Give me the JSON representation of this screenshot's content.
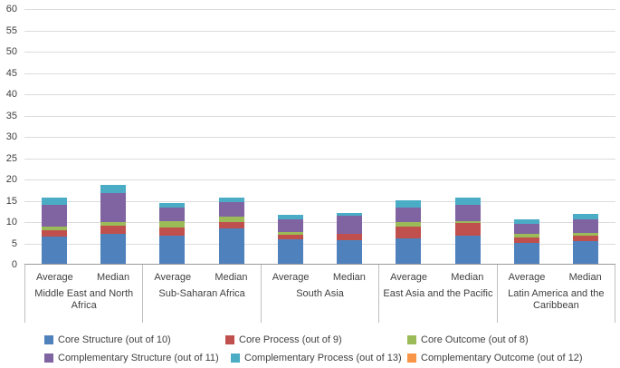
{
  "chart_data": {
    "type": "bar",
    "stacked": true,
    "title": "",
    "xlabel": "",
    "ylabel": "",
    "ylim": [
      0,
      60
    ],
    "ytick_step": 5,
    "yticks": [
      0,
      5,
      10,
      15,
      20,
      25,
      30,
      35,
      40,
      45,
      50,
      55,
      60
    ],
    "grid": true,
    "legend_position": "bottom",
    "group_labels": [
      "Middle East and North Africa",
      "Sub-Saharan Africa",
      "South Asia",
      "East Asia and the Pacific",
      "Latin America and the Caribbean"
    ],
    "categories": [
      "Average",
      "Median",
      "Average",
      "Median",
      "Average",
      "Median",
      "Average",
      "Median",
      "Average",
      "Median"
    ],
    "series": [
      {
        "name": "Core Structure (out of 10)",
        "color": "#4F81BD",
        "values": [
          6.3,
          7.0,
          6.7,
          8.3,
          5.8,
          5.5,
          6.0,
          6.7,
          4.9,
          5.3
        ]
      },
      {
        "name": "Core Process (out of 9)",
        "color": "#C0504D",
        "values": [
          1.6,
          1.9,
          1.9,
          1.4,
          1.0,
          1.5,
          2.8,
          2.8,
          1.3,
          1.2
        ]
      },
      {
        "name": "Core Outcome (out of 8)",
        "color": "#9BBB59",
        "values": [
          0.9,
          0.8,
          1.4,
          1.3,
          0.6,
          0.0,
          1.1,
          0.6,
          0.9,
          0.8
        ]
      },
      {
        "name": "Complementary Structure (out of 11)",
        "color": "#8064A2",
        "values": [
          5.1,
          6.8,
          3.2,
          3.5,
          3.1,
          4.2,
          3.4,
          3.8,
          2.2,
          3.1
        ]
      },
      {
        "name": "Complementary Process (out of 13)",
        "color": "#4BACC6",
        "values": [
          1.6,
          2.0,
          1.1,
          1.1,
          1.0,
          0.8,
          1.7,
          1.6,
          1.2,
          1.3
        ]
      },
      {
        "name": "Complementary Outcome (out of 12)",
        "color": "#F79646",
        "values": [
          0,
          0,
          0,
          0,
          0,
          0,
          0,
          0,
          0,
          0
        ]
      }
    ],
    "totals": [
      15.5,
      18.5,
      14.3,
      15.6,
      11.5,
      12.0,
      15.0,
      15.5,
      10.5,
      11.7
    ]
  }
}
